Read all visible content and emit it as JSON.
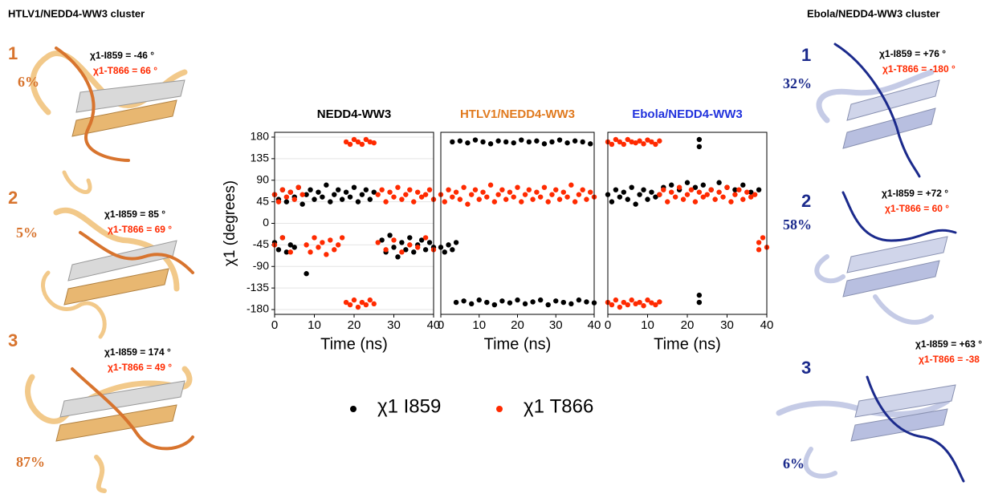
{
  "left": {
    "title": "HTLV1/NEDD4-WW3 cluster",
    "color": "#d8742e",
    "clusters": [
      {
        "number": "1",
        "percent": "6%",
        "chi_i859": "χ1-I859 = -46 °",
        "chi_t866": "χ1-T866 = 66 °"
      },
      {
        "number": "2",
        "percent": "5%",
        "chi_i859": "χ1-I859 = 85 °",
        "chi_t866": "χ1-T866 = 69 °"
      },
      {
        "number": "3",
        "percent": "87%",
        "chi_i859": "χ1-I859 = 174  °",
        "chi_t866": "χ1-T866 = 49 °"
      }
    ]
  },
  "right": {
    "title": "Ebola/NEDD4-WW3 cluster",
    "color": "#1b2a8c",
    "clusters": [
      {
        "number": "1",
        "percent": "32%",
        "chi_i859": "χ1-I859 = +76 °",
        "chi_t866": "χ1-T866 = -180 °"
      },
      {
        "number": "2",
        "percent": "58%",
        "chi_i859": "χ1-I859 = +72 °",
        "chi_t866": "χ1-T866 = 60 °"
      },
      {
        "number": "3",
        "percent": "6%",
        "chi_i859": "χ1-I859 = +63 °",
        "chi_t866": "χ1-T866 = -38 °"
      }
    ]
  },
  "chart_data": [
    {
      "type": "scatter",
      "title": "NEDD4-WW3",
      "title_color": "#000000",
      "xlabel": "Time (ns)",
      "ylabel": "χ1 (degrees)",
      "xlim": [
        0,
        40
      ],
      "ylim": [
        -190,
        190
      ],
      "xticks": [
        0,
        10,
        20,
        30,
        40
      ],
      "yticks": [
        -180,
        -135,
        -90,
        -45,
        0,
        45,
        90,
        135,
        180
      ],
      "grid": true,
      "series": [
        {
          "name": "χ1 I859",
          "color": "#000000",
          "x": [
            0,
            1,
            2,
            3,
            4,
            5,
            6,
            7,
            8,
            9,
            10,
            11,
            12,
            13,
            14,
            15,
            16,
            17,
            18,
            19,
            20,
            21,
            22,
            23,
            24,
            25,
            0,
            1,
            2,
            3,
            4,
            5,
            8,
            27,
            28,
            29,
            30,
            31,
            32,
            33,
            34,
            35,
            36,
            37,
            38,
            39,
            40
          ],
          "values": [
            60,
            50,
            70,
            45,
            65,
            55,
            75,
            40,
            60,
            70,
            50,
            65,
            55,
            80,
            45,
            60,
            70,
            50,
            65,
            55,
            75,
            45,
            60,
            70,
            50,
            65,
            -40,
            -55,
            -30,
            -60,
            -45,
            -50,
            -105,
            -35,
            -60,
            -25,
            -50,
            -70,
            -40,
            -55,
            -30,
            -60,
            -45,
            -35,
            -55,
            -40,
            -50
          ]
        },
        {
          "name": "χ1 T866",
          "color": "#ff2a00",
          "x": [
            0,
            1,
            2,
            3,
            4,
            5,
            6,
            7,
            8,
            9,
            10,
            11,
            12,
            13,
            14,
            15,
            16,
            17,
            18,
            19,
            20,
            21,
            22,
            23,
            24,
            25,
            18,
            19,
            20,
            21,
            22,
            23,
            24,
            25,
            26,
            27,
            28,
            29,
            30,
            31,
            32,
            33,
            34,
            35,
            36,
            37,
            38,
            39,
            40,
            26,
            28,
            30,
            32,
            34,
            36,
            38,
            40,
            0,
            2,
            4
          ],
          "values": [
            60,
            45,
            70,
            55,
            65,
            50,
            75,
            60,
            -45,
            -60,
            -30,
            -50,
            -40,
            -65,
            -35,
            -55,
            -45,
            -30,
            170,
            165,
            175,
            170,
            165,
            175,
            170,
            168,
            -165,
            -170,
            -160,
            -175,
            -165,
            -170,
            -160,
            -168,
            60,
            70,
            45,
            65,
            55,
            75,
            50,
            60,
            70,
            45,
            65,
            55,
            60,
            70,
            50,
            -40,
            -55,
            -35,
            -60,
            -45,
            -50,
            -30,
            -55,
            -45,
            -30,
            -60
          ]
        }
      ]
    },
    {
      "type": "scatter",
      "title": "HTLV1/NEDD4-WW3",
      "title_color": "#e07a1f",
      "xlabel": "Time (ns)",
      "xlim": [
        0,
        40
      ],
      "ylim": [
        -190,
        190
      ],
      "xticks": [
        0,
        10,
        20,
        30,
        40
      ],
      "grid": true,
      "series": [
        {
          "name": "χ1 I859",
          "color": "#000000",
          "x": [
            0,
            1,
            2,
            3,
            4,
            3,
            5,
            7,
            9,
            11,
            13,
            15,
            17,
            19,
            21,
            23,
            25,
            27,
            29,
            31,
            33,
            35,
            37,
            39,
            4,
            6,
            8,
            10,
            12,
            14,
            16,
            18,
            20,
            22,
            24,
            26,
            28,
            30,
            32,
            34,
            36,
            38,
            40
          ],
          "values": [
            -50,
            -60,
            -45,
            -55,
            -40,
            170,
            172,
            168,
            174,
            170,
            166,
            172,
            170,
            168,
            174,
            170,
            172,
            166,
            170,
            174,
            168,
            172,
            170,
            166,
            -165,
            -162,
            -168,
            -160,
            -165,
            -170,
            -162,
            -166,
            -160,
            -168,
            -164,
            -160,
            -170,
            -162,
            -165,
            -168,
            -160,
            -164,
            -166
          ]
        },
        {
          "name": "χ1 T866",
          "color": "#ff2a00",
          "x": [
            0,
            1,
            2,
            3,
            4,
            5,
            6,
            7,
            8,
            9,
            10,
            11,
            12,
            13,
            14,
            15,
            16,
            17,
            18,
            19,
            20,
            21,
            22,
            23,
            24,
            25,
            26,
            27,
            28,
            29,
            30,
            31,
            32,
            33,
            34,
            35,
            36,
            37,
            38,
            39,
            40
          ],
          "values": [
            60,
            45,
            70,
            55,
            65,
            50,
            75,
            40,
            60,
            70,
            50,
            65,
            55,
            80,
            45,
            60,
            70,
            50,
            65,
            55,
            75,
            45,
            60,
            70,
            50,
            65,
            55,
            75,
            45,
            60,
            70,
            50,
            65,
            55,
            80,
            45,
            60,
            70,
            50,
            65,
            55
          ]
        }
      ]
    },
    {
      "type": "scatter",
      "title": "Ebola/NEDD4-WW3",
      "title_color": "#2233dd",
      "xlabel": "Time (ns)",
      "xlim": [
        0,
        40
      ],
      "ylim": [
        -190,
        190
      ],
      "xticks": [
        0,
        10,
        20,
        30,
        40
      ],
      "grid": true,
      "series": [
        {
          "name": "χ1 I859",
          "color": "#000000",
          "x": [
            0,
            1,
            2,
            3,
            4,
            5,
            6,
            7,
            8,
            9,
            10,
            11,
            12,
            13,
            14,
            16,
            18,
            20,
            22,
            24,
            26,
            28,
            30,
            32,
            34,
            36,
            38,
            23,
            23,
            23,
            23
          ],
          "values": [
            60,
            45,
            70,
            55,
            65,
            50,
            75,
            40,
            60,
            70,
            50,
            65,
            55,
            60,
            75,
            80,
            70,
            85,
            75,
            80,
            70,
            85,
            75,
            70,
            80,
            65,
            70,
            175,
            160,
            -150,
            -165
          ]
        },
        {
          "name": "χ1 T866",
          "color": "#ff2a00",
          "x": [
            0,
            1,
            2,
            3,
            4,
            5,
            6,
            7,
            8,
            9,
            10,
            11,
            12,
            13,
            0,
            1,
            2,
            3,
            4,
            5,
            6,
            7,
            8,
            9,
            10,
            11,
            12,
            13,
            13,
            14,
            15,
            16,
            17,
            18,
            19,
            20,
            21,
            22,
            23,
            24,
            25,
            26,
            27,
            28,
            29,
            30,
            31,
            32,
            33,
            34,
            35,
            36,
            37,
            38,
            38,
            39,
            40
          ],
          "values": [
            170,
            165,
            175,
            170,
            165,
            175,
            170,
            168,
            172,
            166,
            174,
            170,
            165,
            172,
            -165,
            -170,
            -160,
            -175,
            -165,
            -170,
            -160,
            -168,
            -165,
            -172,
            -160,
            -166,
            -170,
            -164,
            60,
            70,
            45,
            65,
            55,
            75,
            50,
            60,
            70,
            45,
            65,
            55,
            60,
            70,
            50,
            65,
            55,
            75,
            45,
            60,
            70,
            50,
            65,
            55,
            60,
            -40,
            -55,
            -30,
            -50
          ]
        }
      ]
    }
  ]
}
